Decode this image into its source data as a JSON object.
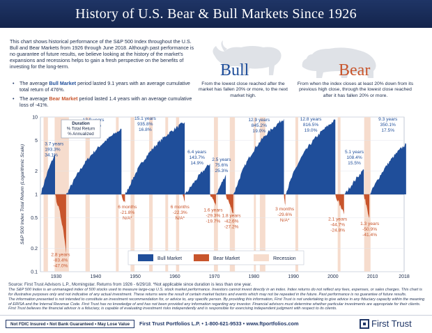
{
  "header": {
    "title": "History of U.S. Bear & Bull Markets Since 1926"
  },
  "intro": {
    "paragraph": "This chart shows historical performance of the S&P 500 Index throughout the U.S. Bull and Bear Markets from 1926 through June 2018. Although past performance is no guarantee of future results, we believe looking at the history of the market's expansions and recessions helps to gain a fresh perspective on the benefits of investing for the long-term.",
    "bullet1_pre": "The average ",
    "bullet1_key": "Bull Market",
    "bullet1_post": " period lasted 9.1 years with an average cumulative total return of 476%.",
    "bullet2_pre": "The average ",
    "bullet2_key": "Bear Market",
    "bullet2_post": " period lasted 1.4 years with an average cumulative loss of -41%."
  },
  "bull": {
    "word": "Bull",
    "description": "From the lowest close reached after the market has fallen 20% or more, to the next market high."
  },
  "bear": {
    "word": "Bear",
    "description": "From when the index closes at least 20% down from its previous high close, through the lowest close reached after it has fallen 20% or more."
  },
  "legend": {
    "bull": "Bull Market",
    "bear": "Bear Market",
    "recession": "Recession"
  },
  "footnotes": {
    "source": "Source: First Trust Advisors L.P., Morningstar. Returns from 1926 - 6/29/18. *Not applicable since duration is less than one year.",
    "line1": "The S&P 500 Index is an unmanaged index of 500 stocks used to measure large-cap U.S. stock market performance. Investors cannot invest directly in an index. Index returns do not reflect any fees, expenses, or sales charges. This chart is for illustrative purposes only and not indicative of any actual investment. These returns were the result of certain market factors and events which may not be repeated in the future. Past performance is no guarantee of future results.",
    "line2": "The information presented is not intended to constitute an investment recommendation for, or advice to, any specific person. By providing this information, First Trust is not undertaking to give advice in any fiduciary capacity within the meaning of ERISA and the Internal Revenue Code. First Trust has no knowledge of and has not been provided any information regarding any investor. Financial advisors must determine whether particular investments are appropriate for their clients. First Trust believes the financial advisor is a fiduciary, is capable of evaluating investment risks independently and is responsible for exercising independent judgment with respect to its clients."
  },
  "footer": {
    "disclaimer": "Not FDIC Insured • Not Bank Guaranteed • May Lose Value",
    "contact": "First Trust Portfolios L.P. • 1-800-621-9533 • www.ftportfolios.com",
    "logo": "First Trust"
  },
  "colors": {
    "navy": "#1f3566",
    "bull": "#1f4e9a",
    "bear": "#c8552c",
    "recession": "#f6dccd"
  },
  "chart_data": {
    "type": "area",
    "ylabel": "S&P 500 Index Total Return (Logarithmic Scale)",
    "yscale": "log",
    "ylim": [
      0.1,
      10
    ],
    "yticks": [
      "10",
      "5",
      "2",
      "1",
      "0.5",
      "0.2",
      "0.1"
    ],
    "xlim": [
      1926,
      2018
    ],
    "xticks": [
      "1930",
      "1940",
      "1950",
      "1960",
      "1970",
      "1980",
      "1990",
      "2000",
      "2010",
      "2018"
    ],
    "duration_key": [
      "Duration",
      "% Total Return",
      "% Annualized"
    ],
    "bull_markets": [
      {
        "start": 1926.0,
        "end": 1929.7,
        "duration": "3.7 years",
        "total": "193.3%",
        "annualized": "34.1%",
        "peak": 3.3
      },
      {
        "start": 1932.5,
        "end": 1946.5,
        "duration": "13.9 years",
        "total": "815.3%",
        "annualized": "17.2%",
        "peak": 7.0
      },
      {
        "start": 1947.4,
        "end": 1962.5,
        "duration": "15.1 years",
        "total": "935.8%",
        "annualized": "16.8%",
        "peak": 8.6
      },
      {
        "start": 1962.5,
        "end": 1968.9,
        "duration": "6.4 years",
        "total": "143.7%",
        "annualized": "14.9%",
        "peak": 2.5
      },
      {
        "start": 1970.4,
        "end": 1972.9,
        "duration": "2.5 years",
        "total": "75.6%",
        "annualized": "25.3%",
        "peak": 1.8
      },
      {
        "start": 1974.8,
        "end": 1987.6,
        "duration": "12.9 years",
        "total": "845.2%",
        "annualized": "19.0%",
        "peak": 9.5
      },
      {
        "start": 1987.9,
        "end": 2000.6,
        "duration": "12.8 years",
        "total": "816.5%",
        "annualized": "19.0%",
        "peak": 9.2
      },
      {
        "start": 2002.8,
        "end": 2007.8,
        "duration": "5.1 years",
        "total": "108.4%",
        "annualized": "15.5%",
        "peak": 2.1
      },
      {
        "start": 2009.2,
        "end": 2018.5,
        "duration": "9.3 years",
        "total": "350.1%",
        "annualized": "17.5%",
        "peak": 4.5
      }
    ],
    "bear_markets": [
      {
        "start": 1929.7,
        "end": 1932.5,
        "duration": "2.8 years",
        "total": "-83.4%",
        "annualized": "-47.0%",
        "trough": 0.17
      },
      {
        "start": 1946.5,
        "end": 1947.4,
        "duration": "6 months",
        "total": "-21.8%",
        "annualized": "N/A*",
        "trough": 0.78
      },
      {
        "start": 1962.0,
        "end": 1962.5,
        "duration": "6 months",
        "total": "-22.3%",
        "annualized": "N/A*",
        "trough": 0.78
      },
      {
        "start": 1968.9,
        "end": 1970.4,
        "duration": "1.6 years",
        "total": "-29.3%",
        "annualized": "-19.7%",
        "trough": 0.71
      },
      {
        "start": 1972.9,
        "end": 1974.8,
        "duration": "1.8 years",
        "total": "-42.6%",
        "annualized": "-27.2%",
        "trough": 0.57
      },
      {
        "start": 1987.6,
        "end": 1987.9,
        "duration": "3 months",
        "total": "-29.6%",
        "annualized": "N/A*",
        "trough": 0.7
      },
      {
        "start": 2000.6,
        "end": 2002.8,
        "duration": "2.1 years",
        "total": "-44.7%",
        "annualized": "-24.8%",
        "trough": 0.55
      },
      {
        "start": 2007.8,
        "end": 2009.2,
        "duration": "1.3 years",
        "total": "-50.9%",
        "annualized": "-41.4%",
        "trough": 0.49
      }
    ],
    "recessions": [
      [
        1926.8,
        1927.9
      ],
      [
        1929.6,
        1933.2
      ],
      [
        1937.4,
        1938.5
      ],
      [
        1945.1,
        1945.8
      ],
      [
        1948.8,
        1949.8
      ],
      [
        1953.5,
        1954.4
      ],
      [
        1957.6,
        1958.3
      ],
      [
        1960.3,
        1961.1
      ],
      [
        1969.9,
        1970.9
      ],
      [
        1973.9,
        1975.2
      ],
      [
        1980.0,
        1980.5
      ],
      [
        1981.5,
        1982.9
      ],
      [
        1990.5,
        1991.2
      ],
      [
        2001.2,
        2001.9
      ],
      [
        2007.9,
        2009.5
      ]
    ]
  }
}
